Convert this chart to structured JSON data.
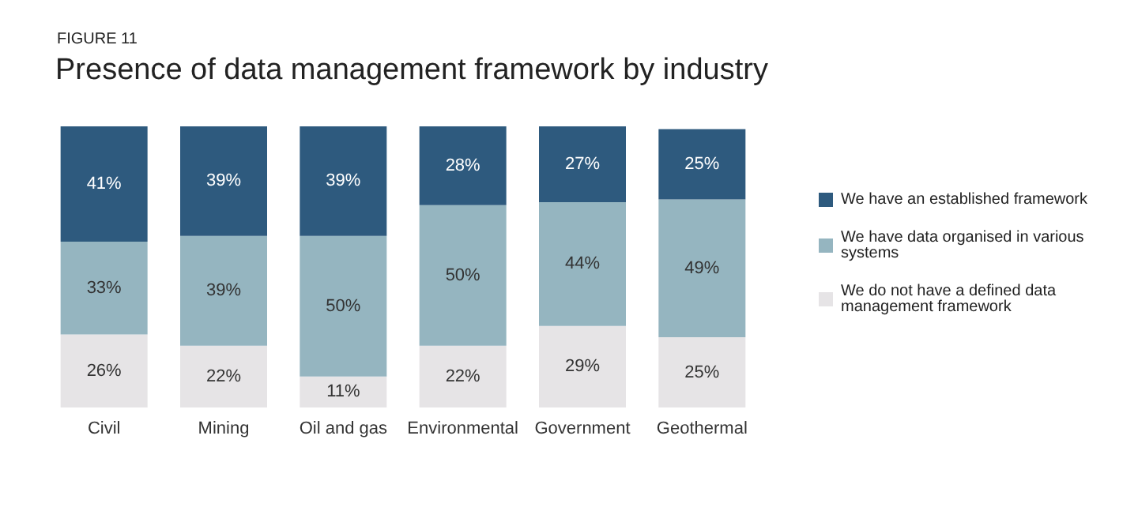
{
  "chart_data": {
    "type": "bar",
    "stacked": true,
    "title": "Presence of data management framework by industry",
    "annotations": [
      "FIGURE 11"
    ],
    "categories": [
      "Civil",
      "Mining",
      "Oil and gas",
      "Environmental",
      "Government",
      "Geothermal"
    ],
    "series": [
      {
        "name": "We do not have a defined data management framework",
        "color": "#e6e4e6",
        "values": [
          26,
          22,
          11,
          22,
          29,
          25
        ],
        "value_labels": [
          "26%",
          "22%",
          "11%",
          "22%",
          "29%",
          "25%"
        ]
      },
      {
        "name": "We have data organised in various systems",
        "color": "#95b5c0",
        "values": [
          33,
          39,
          50,
          50,
          44,
          49
        ],
        "value_labels": [
          "33%",
          "39%",
          "50%",
          "50%",
          "44%",
          "49%"
        ]
      },
      {
        "name": "We have an established framework",
        "color": "#2e5a7e",
        "values": [
          41,
          39,
          39,
          28,
          27,
          25
        ],
        "value_labels": [
          "41%",
          "39%",
          "39%",
          "28%",
          "27%",
          "25%"
        ]
      }
    ],
    "legend": "right"
  }
}
